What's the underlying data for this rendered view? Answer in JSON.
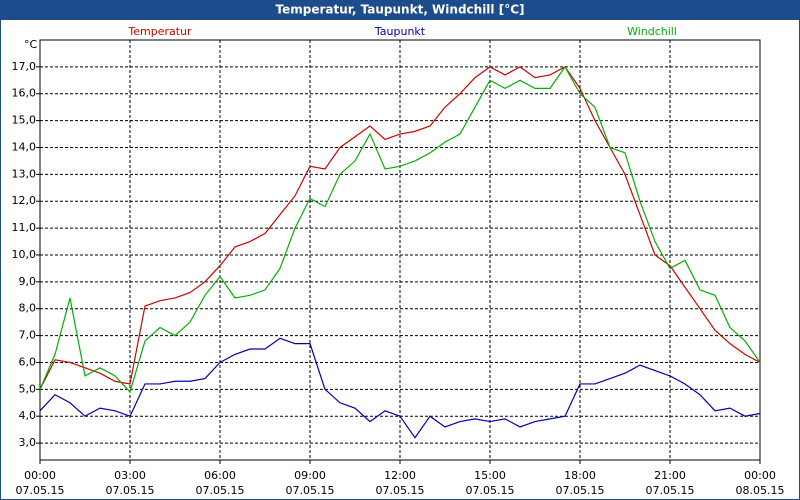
{
  "chart_data": {
    "type": "line",
    "title": "Temperatur, Taupunkt, Windchill [°C]",
    "y_unit": "°C",
    "x": [
      0,
      0.5,
      1,
      1.5,
      2,
      2.5,
      3,
      3.5,
      4,
      4.5,
      5,
      5.5,
      6,
      6.5,
      7,
      7.5,
      8,
      8.5,
      9,
      9.5,
      10,
      10.5,
      11,
      11.5,
      12,
      12.5,
      13,
      13.5,
      14,
      14.5,
      15,
      15.5,
      16,
      16.5,
      17,
      17.5,
      18,
      18.5,
      19,
      19.5,
      20,
      20.5,
      21,
      21.5,
      22,
      22.5,
      23,
      23.5,
      24
    ],
    "series": [
      {
        "name": "Temperatur",
        "color": "#d00000",
        "values": [
          5.0,
          6.1,
          6.0,
          5.8,
          5.6,
          5.3,
          5.2,
          8.1,
          8.3,
          8.4,
          8.6,
          9.0,
          9.6,
          10.3,
          10.5,
          10.8,
          11.5,
          12.2,
          13.3,
          13.2,
          14.0,
          14.4,
          14.8,
          14.3,
          14.5,
          14.6,
          14.8,
          15.5,
          16.0,
          16.6,
          17.0,
          16.7,
          17.0,
          16.6,
          16.7,
          17.0,
          16.2,
          15.0,
          14.0,
          13.0,
          11.5,
          10.0,
          9.6,
          8.8,
          8.0,
          7.2,
          6.7,
          6.3,
          6.0
        ]
      },
      {
        "name": "Taupunkt",
        "color": "#0000b0",
        "values": [
          4.2,
          4.8,
          4.5,
          4.0,
          4.3,
          4.2,
          4.0,
          5.2,
          5.2,
          5.3,
          5.3,
          5.4,
          6.0,
          6.3,
          6.5,
          6.5,
          6.9,
          6.7,
          6.7,
          5.0,
          4.5,
          4.3,
          3.8,
          4.2,
          4.0,
          3.2,
          4.0,
          3.6,
          3.8,
          3.9,
          3.8,
          3.9,
          3.6,
          3.8,
          3.9,
          4.0,
          5.2,
          5.2,
          5.4,
          5.6,
          5.9,
          5.7,
          5.5,
          5.2,
          4.8,
          4.2,
          4.3,
          4.0,
          4.1
        ]
      },
      {
        "name": "Windchill",
        "color": "#00b000",
        "values": [
          5.0,
          6.3,
          8.4,
          5.5,
          5.8,
          5.5,
          4.9,
          6.8,
          7.3,
          7.0,
          7.5,
          8.5,
          9.2,
          8.4,
          8.5,
          8.7,
          9.5,
          11.0,
          12.1,
          11.8,
          13.0,
          13.5,
          14.5,
          13.2,
          13.3,
          13.5,
          13.8,
          14.2,
          14.5,
          15.5,
          16.5,
          16.2,
          16.5,
          16.2,
          16.2,
          17.0,
          16.0,
          15.5,
          14.0,
          13.8,
          12.0,
          10.5,
          9.5,
          9.8,
          8.7,
          8.5,
          7.3,
          6.8,
          6.0
        ]
      }
    ],
    "xlim": [
      0,
      24
    ],
    "xticks": [
      {
        "value": 0,
        "label": "00:00",
        "date": "07.05.15"
      },
      {
        "value": 3,
        "label": "03:00",
        "date": "07.05.15"
      },
      {
        "value": 6,
        "label": "06:00",
        "date": "07.05.15"
      },
      {
        "value": 9,
        "label": "09:00",
        "date": "07.05.15"
      },
      {
        "value": 12,
        "label": "12:00",
        "date": "07.05.15"
      },
      {
        "value": 15,
        "label": "15:00",
        "date": "07.05.15"
      },
      {
        "value": 18,
        "label": "18:00",
        "date": "07.05.15"
      },
      {
        "value": 21,
        "label": "21:00",
        "date": "07.05.15"
      },
      {
        "value": 24,
        "label": "00:00",
        "date": "08.05.15"
      }
    ],
    "ylim": [
      2.37,
      18.0
    ],
    "yticks": [
      {
        "value": 3,
        "label": "3,0"
      },
      {
        "value": 4,
        "label": "4,0"
      },
      {
        "value": 5,
        "label": "5,0"
      },
      {
        "value": 6,
        "label": "6,0"
      },
      {
        "value": 7,
        "label": "7,0"
      },
      {
        "value": 8,
        "label": "8,0"
      },
      {
        "value": 9,
        "label": "9,0"
      },
      {
        "value": 10,
        "label": "10,0"
      },
      {
        "value": 11,
        "label": "11,0"
      },
      {
        "value": 12,
        "label": "12,0"
      },
      {
        "value": 13,
        "label": "13,0"
      },
      {
        "value": 14,
        "label": "14,0"
      },
      {
        "value": 15,
        "label": "15,0"
      },
      {
        "value": 16,
        "label": "16,0"
      },
      {
        "value": 17,
        "label": "17,0"
      }
    ],
    "grid": true
  }
}
